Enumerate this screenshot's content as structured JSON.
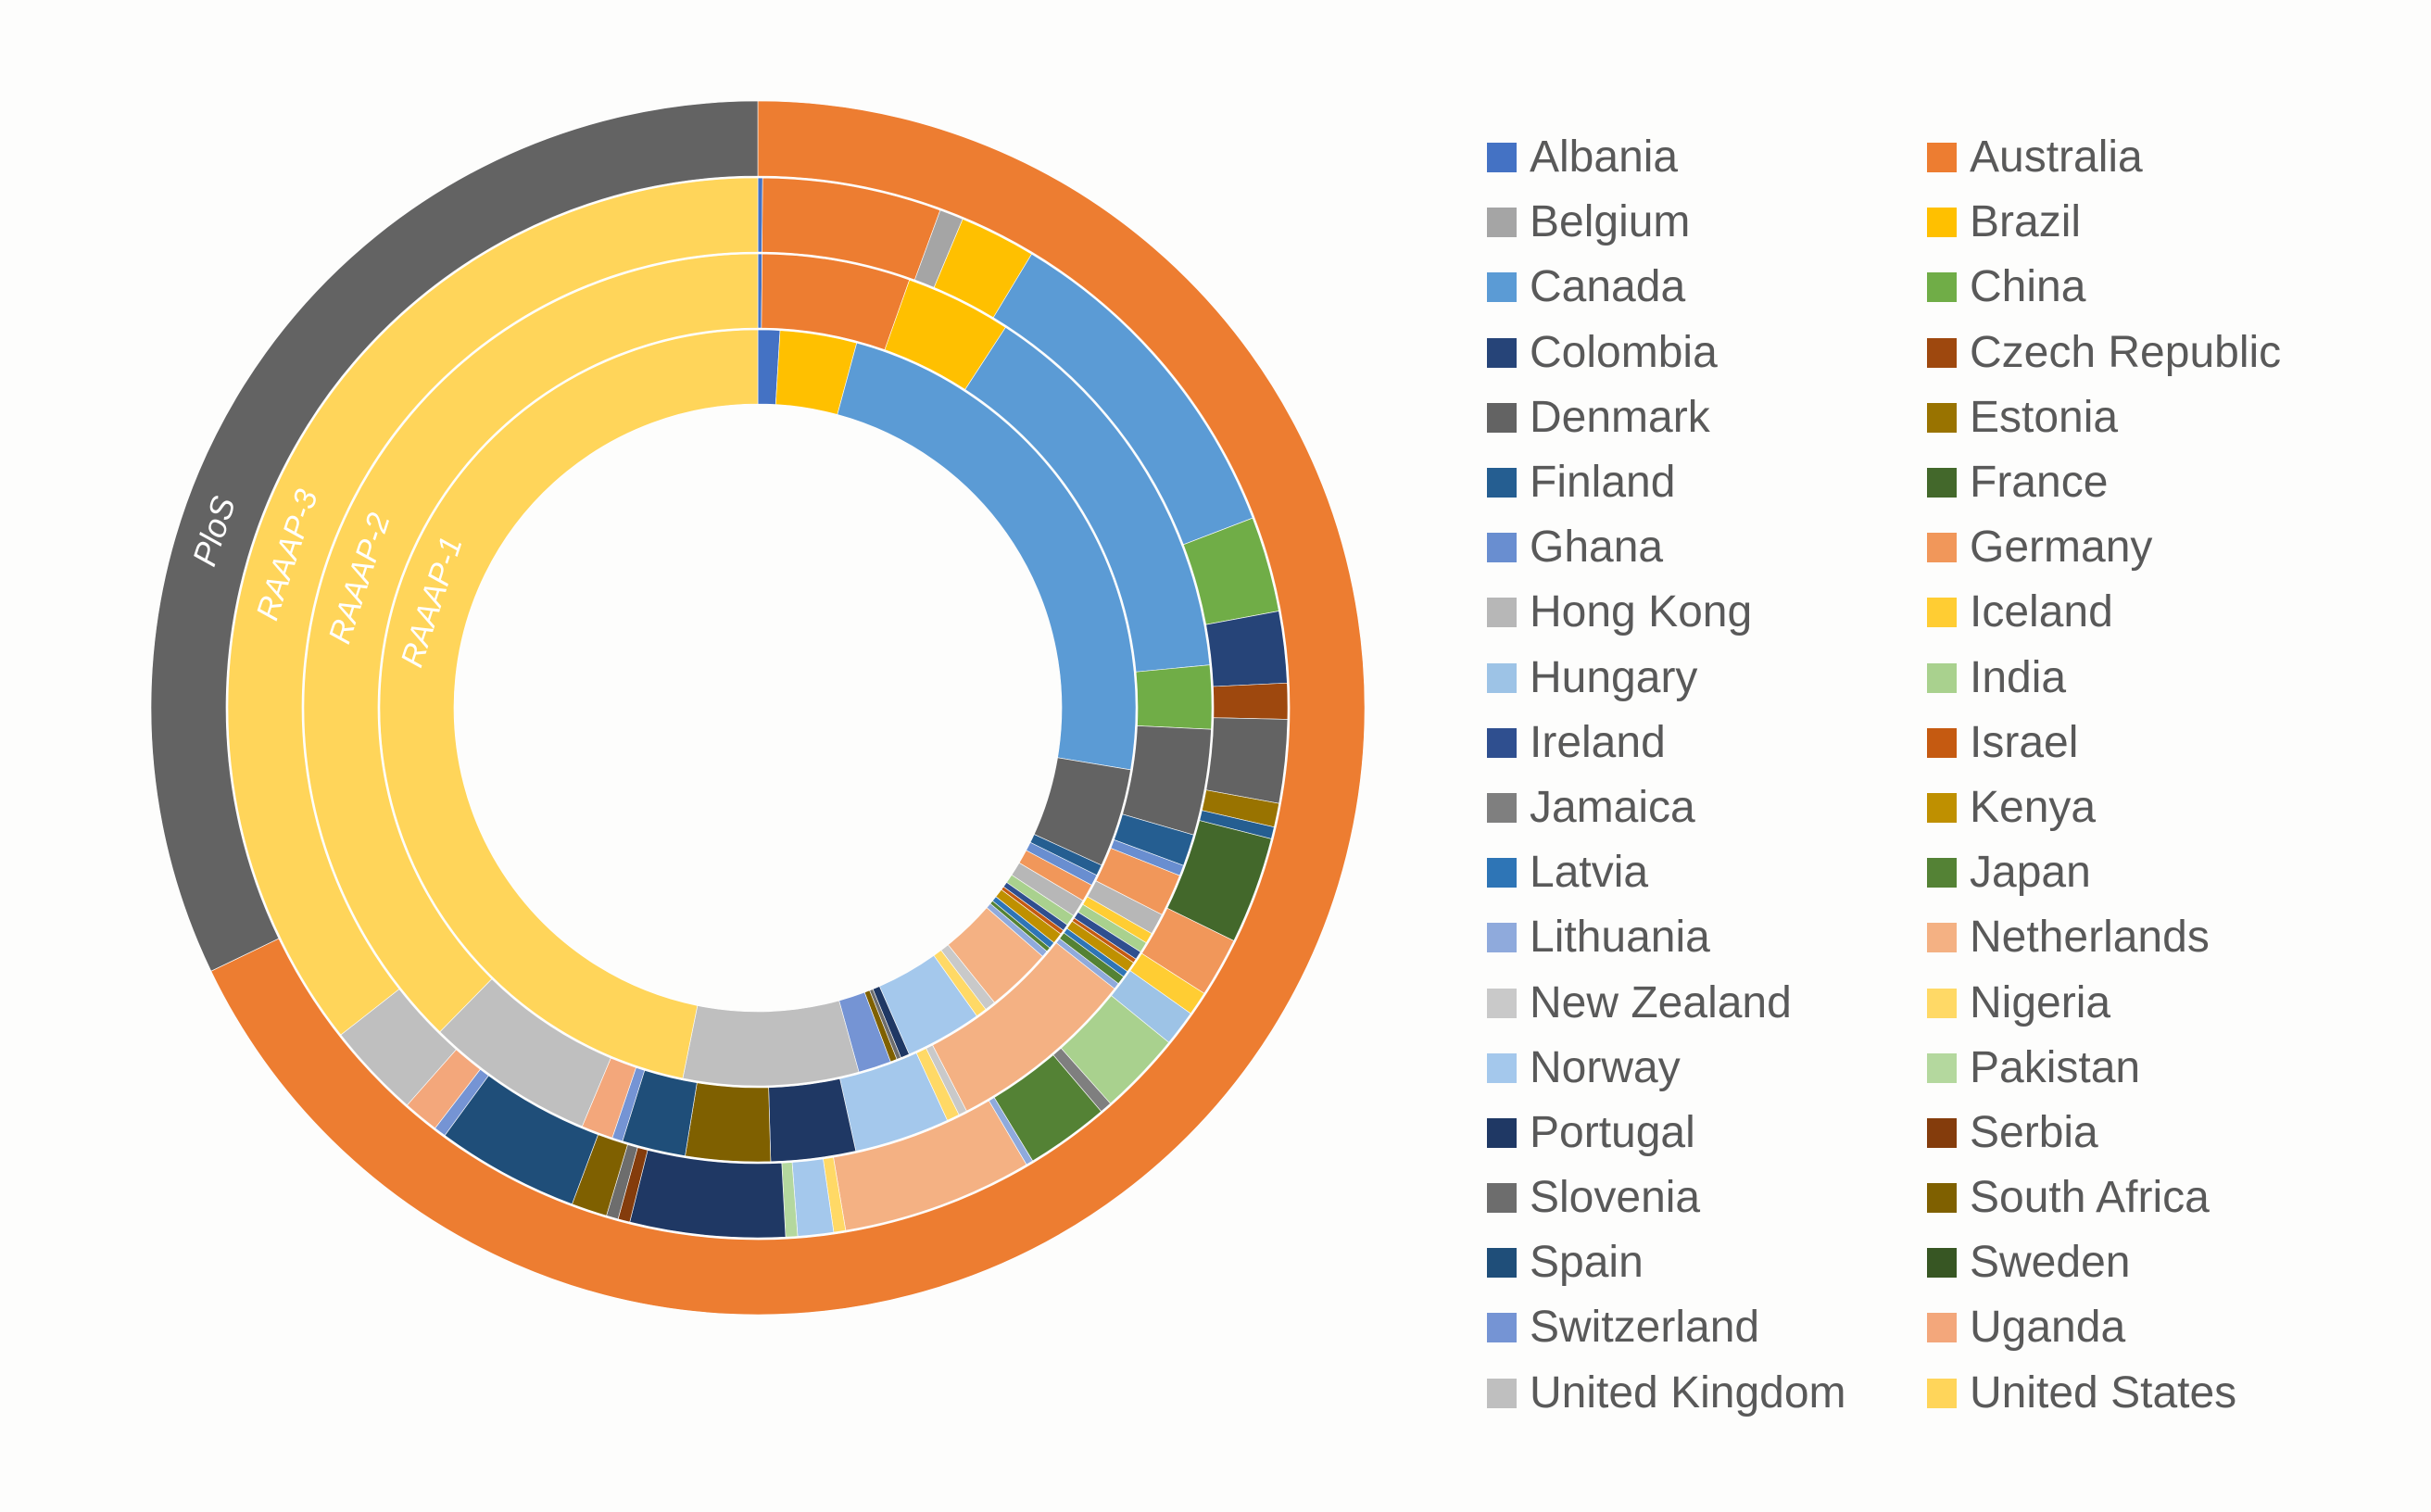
{
  "chart_data": {
    "type": "sunburst",
    "rings": [
      {
        "name": "RAAAP-1",
        "values": {
          "Albania": 1,
          "Australia": 0,
          "Belgium": 0,
          "Brazil": 3.5,
          "Canada": 25,
          "China": 0,
          "Colombia": 0,
          "Czech Republic": 0,
          "Denmark": 4.5,
          "Estonia": 0,
          "Finland": 0.5,
          "France": 0,
          "Ghana": 0.5,
          "Germany": 0.8,
          "Hong Kong": 0.8,
          "Iceland": 0,
          "Hungary": 0,
          "India": 0.5,
          "Ireland": 0.3,
          "Israel": 0.2,
          "Jamaica": 0,
          "Kenya": 0.5,
          "Latvia": 0.3,
          "Japan": 0.2,
          "Lithuania": 0.3,
          "Netherlands": 3,
          "New Zealand": 0.5,
          "Nigeria": 0.5,
          "Norway": 3.5,
          "Pakistan": 0,
          "Portugal": 0.4,
          "Serbia": 0,
          "Slovenia": 0.2,
          "South Africa": 0.3,
          "Spain": 0,
          "Sweden": 0,
          "Switzerland": 1.5,
          "Uganda": 0,
          "United Kingdom": 8,
          "United States": 50
        }
      },
      {
        "name": "RAAAP-2",
        "values": {
          "Albania": 0.2,
          "Australia": 7,
          "Belgium": 0,
          "Brazil": 5,
          "Canada": 19,
          "China": 3,
          "Colombia": 0,
          "Czech Republic": 0,
          "Denmark": 5,
          "Estonia": 0,
          "Finland": 1.5,
          "France": 0,
          "Ghana": 0.5,
          "Germany": 2,
          "Hong Kong": 1,
          "Iceland": 0.5,
          "Hungary": 0,
          "India": 0.5,
          "Ireland": 0.4,
          "Israel": 0.2,
          "Jamaica": 0,
          "Kenya": 0.5,
          "Latvia": 0.3,
          "Japan": 0.4,
          "Lithuania": 0.3,
          "Netherlands": 9,
          "New Zealand": 0.4,
          "Nigeria": 0.6,
          "Norway": 4.5,
          "Pakistan": 0,
          "Portugal": 4,
          "Serbia": 0,
          "Slovenia": 0,
          "South Africa": 4,
          "Spain": 3,
          "Sweden": 0,
          "Switzerland": 0.5,
          "Uganda": 1.5,
          "United Kingdom": 8,
          "United States": 50
        }
      },
      {
        "name": "RAAAP-3",
        "values": {
          "Albania": 0.2,
          "Australia": 7.5,
          "Belgium": 1,
          "Brazil": 3.2,
          "Canada": 14.5,
          "China": 4,
          "Colombia": 3,
          "Czech Republic": 1.5,
          "Denmark": 3.5,
          "Estonia": 1,
          "Finland": 0.5,
          "France": 4.5,
          "Ghana": 0,
          "Germany": 2.5,
          "Hong Kong": 0,
          "Iceland": 1,
          "Hungary": 1.5,
          "India": 3.5,
          "Ireland": 0,
          "Israel": 0,
          "Jamaica": 0.5,
          "Kenya": 0,
          "Latvia": 0,
          "Japan": 3.5,
          "Lithuania": 0.3,
          "Netherlands": 8,
          "New Zealand": 0,
          "Nigeria": 0.5,
          "Norway": 1.5,
          "Pakistan": 0.5,
          "Portugal": 6.5,
          "Serbia": 0.5,
          "Slovenia": 0.5,
          "South Africa": 1.5,
          "Spain": 6,
          "Sweden": 0,
          "Switzerland": 0.5,
          "Uganda": 1.5,
          "United Kingdom": 4,
          "United States": 49
        }
      },
      {
        "name": "PloS",
        "values": {
          "Albania": 0,
          "Australia": 9.5,
          "Belgium": 0,
          "Brazil": 0,
          "Canada": 0,
          "China": 0,
          "Colombia": 0,
          "Czech Republic": 0,
          "Denmark": 4.5,
          "Estonia": 0,
          "Finland": 0,
          "France": 0,
          "Ghana": 0,
          "Germany": 0,
          "Hong Kong": 0,
          "Iceland": 0,
          "Hungary": 0,
          "India": 0,
          "Ireland": 0,
          "Israel": 0,
          "Jamaica": 0,
          "Kenya": 0,
          "Latvia": 0,
          "Japan": 0,
          "Lithuania": 0,
          "Netherlands": 0,
          "New Zealand": 0,
          "Nigeria": 0,
          "Norway": 0,
          "Pakistan": 0,
          "Portugal": 0,
          "Serbia": 0,
          "Slovenia": 0,
          "South Africa": 0,
          "Spain": 0,
          "Sweden": 0,
          "Switzerland": 0,
          "Uganda": 0,
          "United Kingdom": 0,
          "United States": 0
        }
      }
    ],
    "legend": [
      {
        "name": "Albania",
        "color": "#4472c4"
      },
      {
        "name": "Australia",
        "color": "#ed7d31"
      },
      {
        "name": "Belgium",
        "color": "#a5a5a5"
      },
      {
        "name": "Brazil",
        "color": "#ffc000"
      },
      {
        "name": "Canada",
        "color": "#5b9bd5"
      },
      {
        "name": "China",
        "color": "#70ad47"
      },
      {
        "name": "Colombia",
        "color": "#264478"
      },
      {
        "name": "Czech Republic",
        "color": "#9e480e"
      },
      {
        "name": "Denmark",
        "color": "#636363"
      },
      {
        "name": "Estonia",
        "color": "#997300"
      },
      {
        "name": "Finland",
        "color": "#255e91"
      },
      {
        "name": "France",
        "color": "#43682b"
      },
      {
        "name": "Ghana",
        "color": "#698ed0"
      },
      {
        "name": "Germany",
        "color": "#f1975a"
      },
      {
        "name": "Hong Kong",
        "color": "#b7b7b7"
      },
      {
        "name": "Iceland",
        "color": "#ffcd33"
      },
      {
        "name": "Hungary",
        "color": "#9dc3e6"
      },
      {
        "name": "India",
        "color": "#a9d18e"
      },
      {
        "name": "Ireland",
        "color": "#2f4f8f"
      },
      {
        "name": "Israel",
        "color": "#c55a11"
      },
      {
        "name": "Jamaica",
        "color": "#7f7f7f"
      },
      {
        "name": "Kenya",
        "color": "#bf9000"
      },
      {
        "name": "Latvia",
        "color": "#2e75b6"
      },
      {
        "name": "Japan",
        "color": "#548235"
      },
      {
        "name": "Lithuania",
        "color": "#8faadc"
      },
      {
        "name": "Netherlands",
        "color": "#f4b183"
      },
      {
        "name": "New Zealand",
        "color": "#c9c9c9"
      },
      {
        "name": "Nigeria",
        "color": "#ffd966"
      },
      {
        "name": "Norway",
        "color": "#a4c8ec"
      },
      {
        "name": "Pakistan",
        "color": "#b4d89e"
      },
      {
        "name": "Portugal",
        "color": "#1f3864"
      },
      {
        "name": "Serbia",
        "color": "#843c0c"
      },
      {
        "name": "Slovenia",
        "color": "#6d6d6d"
      },
      {
        "name": "South Africa",
        "color": "#7f6000"
      },
      {
        "name": "Spain",
        "color": "#1f4e79"
      },
      {
        "name": "Sweden",
        "color": "#375623"
      },
      {
        "name": "Switzerland",
        "color": "#7594d4"
      },
      {
        "name": "Uganda",
        "color": "#f3a77b"
      },
      {
        "name": "United Kingdom",
        "color": "#bfbfbf"
      },
      {
        "name": "United States",
        "color": "#ffd55a"
      }
    ],
    "title": "",
    "legend_position": "right"
  }
}
